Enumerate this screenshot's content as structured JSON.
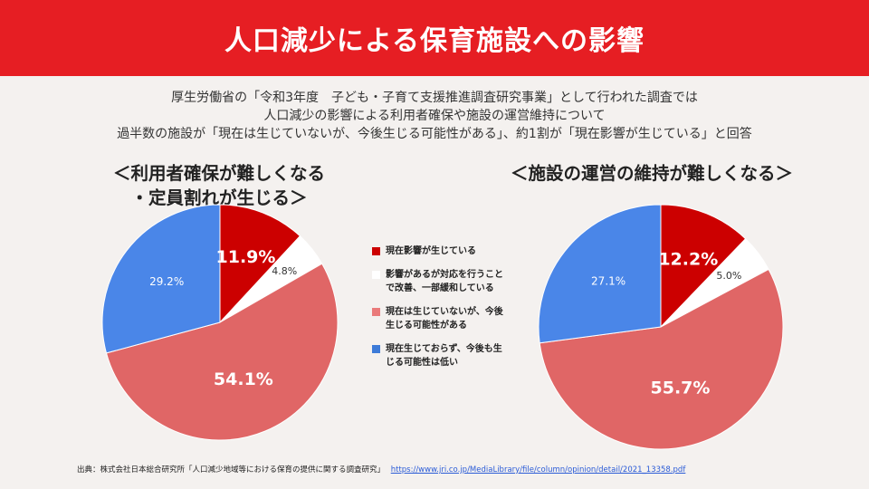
{
  "title": "人口減少による保育施設への影響",
  "intro": [
    "厚生労働省の「令和3年度　子ども・子育て支援推進調査研究事業」として行われた調査では",
    "人口減少の影響による利用者確保や施設の運営維持について",
    "過半数の施設が「現在は生じていないが、今後生じる可能性がある」、約1割が「現在影響が生じている」と回答"
  ],
  "charts": {
    "left": {
      "title_line1": "＜利用者確保が難しくなる",
      "title_line2": "・定員割れが生じる＞"
    },
    "right": {
      "title": "＜施設の運営の維持が難しくなる＞"
    }
  },
  "legend": [
    {
      "label": "現在影響が生じている",
      "color": "#cc0000"
    },
    {
      "label": "影響があるが対応を行うことで改善、一部緩和している",
      "color": "#ffffff"
    },
    {
      "label": "現在は生じていないが、今後生じる可能性がある",
      "color": "#ea7a7a"
    },
    {
      "label": "現在生じておらず、今後も生じる可能性は低い",
      "color": "#3d7bd8"
    }
  ],
  "source": {
    "text": "出典：株式会社日本総合研究所「人口減少地域等における保育の提供に関する調査研究」",
    "url": "https://www.jri.co.jp/MediaLibrary/file/column/opinion/detail/2021_13358.pdf"
  },
  "chart_data": [
    {
      "type": "pie",
      "title": "＜利用者確保が難しくなる・定員割れが生じる＞",
      "categories": [
        "現在影響が生じている",
        "影響があるが対応を行うことで改善、一部緩和している",
        "現在は生じていないが、今後生じる可能性がある",
        "現在生じておらず、今後も生じる可能性は低い"
      ],
      "values": [
        11.9,
        4.8,
        54.1,
        29.2
      ],
      "labels": [
        "11.9%",
        "4.8%",
        "54.1%",
        "29.2%"
      ],
      "colors": [
        "#cc0000",
        "#ffffff",
        "#e06666",
        "#4a86e8"
      ]
    },
    {
      "type": "pie",
      "title": "＜施設の運営の維持が難しくなる＞",
      "categories": [
        "現在影響が生じている",
        "影響があるが対応を行うことで改善、一部緩和している",
        "現在は生じていないが、今後生じる可能性がある",
        "現在生じておらず、今後も生じる可能性は低い"
      ],
      "values": [
        12.2,
        5.0,
        55.7,
        27.1
      ],
      "labels": [
        "12.2%",
        "5.0%",
        "55.7%",
        "27.1%"
      ],
      "colors": [
        "#cc0000",
        "#ffffff",
        "#e06666",
        "#4a86e8"
      ]
    }
  ]
}
